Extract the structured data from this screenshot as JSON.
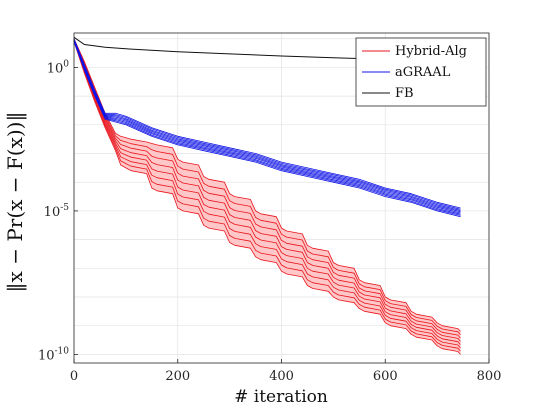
{
  "chart_data": {
    "type": "line",
    "xlabel": "# iteration",
    "ylabel": "‖x − Pr(x − F(x))‖",
    "xlim": [
      0,
      800
    ],
    "ylim_log10": [
      -10.3,
      1.2
    ],
    "yscale": "log",
    "grid": true,
    "legend_position": "top-right",
    "x_ticks": [
      {
        "value": 0,
        "label": "0"
      },
      {
        "value": 200,
        "label": "200"
      },
      {
        "value": 400,
        "label": "400"
      },
      {
        "value": 600,
        "label": "600"
      },
      {
        "value": 800,
        "label": "800"
      }
    ],
    "y_ticks": [
      {
        "exp": 0,
        "base": "10",
        "sup": "0"
      },
      {
        "exp": -5,
        "base": "10",
        "sup": "-5"
      },
      {
        "exp": -10,
        "base": "10",
        "sup": "-10"
      }
    ],
    "series": [
      {
        "name": "Hybrid-Alg",
        "color": "#e8141c",
        "band_color": "#ffc7c7",
        "x": [
          0,
          20,
          40,
          60,
          80,
          90,
          100,
          110,
          140,
          150,
          160,
          190,
          200,
          210,
          240,
          250,
          260,
          290,
          300,
          310,
          340,
          350,
          360,
          390,
          400,
          410,
          440,
          450,
          460,
          490,
          500,
          510,
          540,
          550,
          560,
          590,
          600,
          610,
          640,
          650,
          660,
          690,
          700,
          710,
          740,
          745
        ],
        "lower_log10": [
          0.9,
          -0.2,
          -1.2,
          -2.1,
          -2.9,
          -3.4,
          -3.5,
          -3.6,
          -3.7,
          -4.2,
          -4.3,
          -4.4,
          -4.9,
          -5.0,
          -5.1,
          -5.5,
          -5.6,
          -5.7,
          -6.1,
          -6.2,
          -6.3,
          -6.6,
          -6.7,
          -6.8,
          -7.1,
          -7.2,
          -7.3,
          -7.6,
          -7.7,
          -7.8,
          -8.0,
          -8.1,
          -8.2,
          -8.4,
          -8.5,
          -8.6,
          -8.9,
          -9.0,
          -9.1,
          -9.3,
          -9.4,
          -9.5,
          -9.7,
          -9.8,
          -9.9,
          -10.0
        ],
        "upper_log10": [
          1.0,
          0.2,
          -0.7,
          -1.6,
          -2.3,
          -2.4,
          -2.45,
          -2.5,
          -2.6,
          -2.65,
          -2.7,
          -2.8,
          -3.2,
          -3.3,
          -3.4,
          -3.8,
          -3.9,
          -4.0,
          -4.4,
          -4.5,
          -4.6,
          -5.0,
          -5.1,
          -5.2,
          -5.6,
          -5.7,
          -5.8,
          -6.2,
          -6.3,
          -6.4,
          -6.8,
          -6.9,
          -7.0,
          -7.4,
          -7.5,
          -7.6,
          -8.0,
          -8.1,
          -8.2,
          -8.5,
          -8.6,
          -8.7,
          -8.9,
          -9.0,
          -9.1,
          -9.2
        ]
      },
      {
        "name": "aGRAAL",
        "color": "#0f14e6",
        "x": [
          0,
          20,
          40,
          60,
          80,
          100,
          150,
          200,
          250,
          300,
          350,
          400,
          450,
          500,
          550,
          600,
          650,
          700,
          745
        ],
        "lower_log10": [
          0.9,
          -0.1,
          -1.0,
          -1.8,
          -1.9,
          -2.0,
          -2.4,
          -2.7,
          -2.9,
          -3.1,
          -3.3,
          -3.6,
          -3.8,
          -4.0,
          -4.2,
          -4.5,
          -4.7,
          -5.0,
          -5.2
        ],
        "upper_log10": [
          1.0,
          0.1,
          -0.8,
          -1.6,
          -1.6,
          -1.7,
          -2.1,
          -2.4,
          -2.6,
          -2.8,
          -3.0,
          -3.3,
          -3.5,
          -3.7,
          -3.9,
          -4.2,
          -4.4,
          -4.7,
          -4.9
        ]
      },
      {
        "name": "FB",
        "color": "#111111",
        "x": [
          0,
          20,
          40,
          60,
          100,
          200,
          300,
          400,
          500,
          600,
          700,
          745
        ],
        "y_log10": [
          1.05,
          0.8,
          0.75,
          0.7,
          0.65,
          0.55,
          0.47,
          0.4,
          0.34,
          0.28,
          0.22,
          0.18
        ]
      }
    ]
  }
}
